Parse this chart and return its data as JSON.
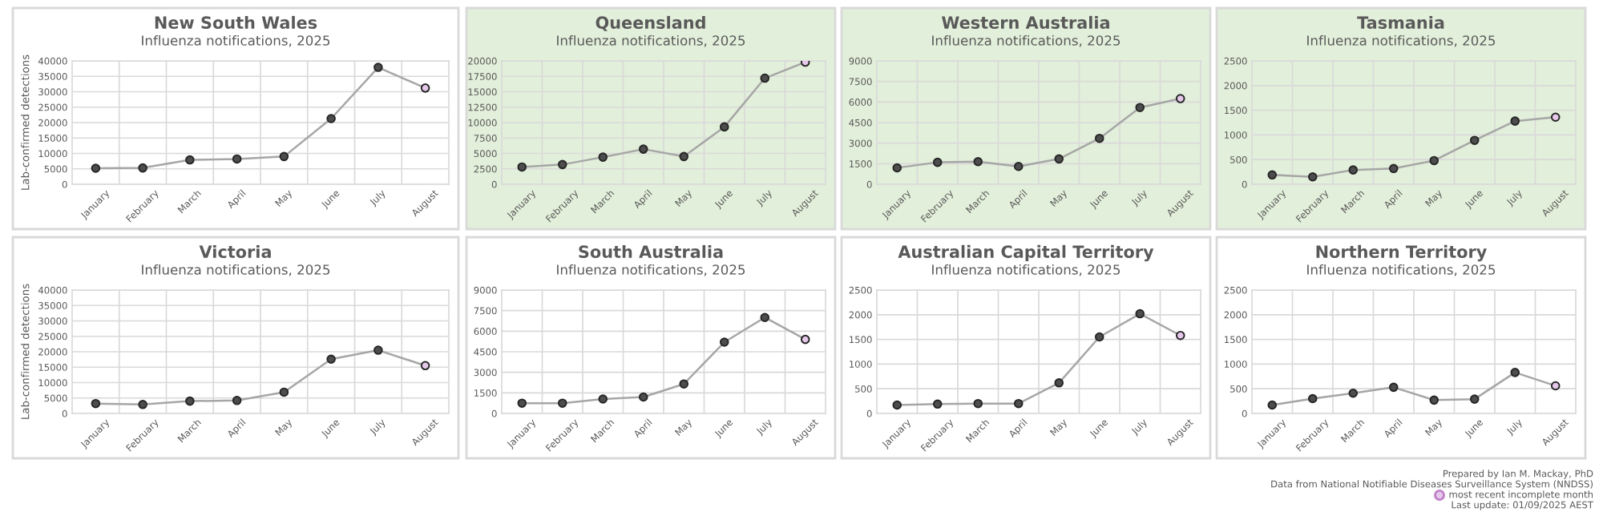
{
  "chart_data": [
    {
      "type": "line",
      "title": "New South Wales",
      "subtitle": "Influenza notifications, 2025",
      "ylabel": "Lab-confirmed detections",
      "categories": [
        "January",
        "February",
        "March",
        "April",
        "May",
        "June",
        "July",
        "August"
      ],
      "series": [
        {
          "color": "#a6a6a6",
          "colors": [
            "#4d4d4d",
            "#4d4d4d",
            "#4d4d4d",
            "#4d4d4d",
            "#4d4d4d",
            "#4d4d4d",
            "#4d4d4d",
            "#e6c8ea"
          ],
          "values": [
            5200,
            5300,
            7900,
            8200,
            9000,
            21300,
            37900,
            31200
          ]
        }
      ],
      "ylim": [
        0,
        40000
      ],
      "yticks": [
        0,
        5000,
        10000,
        15000,
        20000,
        25000,
        30000,
        35000,
        40000
      ],
      "grid": true,
      "marker": "circle",
      "line_style": "solid"
    },
    {
      "type": "line",
      "title": "Queensland",
      "subtitle": "Influenza notifications, 2025",
      "categories": [
        "January",
        "February",
        "March",
        "April",
        "May",
        "June",
        "July",
        "August"
      ],
      "series": [
        {
          "color": "#a6a6a6",
          "colors": [
            "#4d4d4d",
            "#4d4d4d",
            "#4d4d4d",
            "#4d4d4d",
            "#4d4d4d",
            "#4d4d4d",
            "#4d4d4d",
            "#e6c8ea"
          ],
          "values": [
            2800,
            3200,
            4400,
            5700,
            4500,
            9300,
            17200,
            19800
          ]
        }
      ],
      "ylim": [
        0,
        20000
      ],
      "yticks": [
        0,
        2500,
        5000,
        7500,
        10000,
        12500,
        15000,
        17500,
        20000
      ],
      "grid": true,
      "marker": "circle",
      "line_style": "solid"
    },
    {
      "type": "line",
      "title": "Western Australia",
      "subtitle": "Influenza notifications, 2025",
      "categories": [
        "January",
        "February",
        "March",
        "April",
        "May",
        "June",
        "July",
        "August"
      ],
      "series": [
        {
          "color": "#a6a6a6",
          "colors": [
            "#4d4d4d",
            "#4d4d4d",
            "#4d4d4d",
            "#4d4d4d",
            "#4d4d4d",
            "#4d4d4d",
            "#4d4d4d",
            "#e6c8ea"
          ],
          "values": [
            1200,
            1600,
            1650,
            1300,
            1850,
            3350,
            5600,
            6250
          ]
        }
      ],
      "ylim": [
        0,
        9000
      ],
      "yticks": [
        0,
        1500,
        3000,
        4500,
        6000,
        7500,
        9000
      ],
      "grid": true,
      "marker": "circle",
      "line_style": "solid"
    },
    {
      "type": "line",
      "title": "Tasmania",
      "subtitle": "Influenza notifications, 2025",
      "categories": [
        "January",
        "February",
        "March",
        "April",
        "May",
        "June",
        "July",
        "August"
      ],
      "series": [
        {
          "color": "#a6a6a6",
          "colors": [
            "#4d4d4d",
            "#4d4d4d",
            "#4d4d4d",
            "#4d4d4d",
            "#4d4d4d",
            "#4d4d4d",
            "#4d4d4d",
            "#e6c8ea"
          ],
          "values": [
            190,
            150,
            290,
            320,
            480,
            890,
            1280,
            1360
          ]
        }
      ],
      "ylim": [
        0,
        2500
      ],
      "yticks": [
        0,
        500,
        1000,
        1500,
        2000,
        2500
      ],
      "grid": true,
      "marker": "circle",
      "line_style": "solid"
    },
    {
      "type": "line",
      "title": "Victoria",
      "subtitle": "Influenza notifications, 2025",
      "ylabel": "Lab-confirmed detections",
      "categories": [
        "January",
        "February",
        "March",
        "April",
        "May",
        "June",
        "July",
        "August"
      ],
      "series": [
        {
          "color": "#a6a6a6",
          "colors": [
            "#4d4d4d",
            "#4d4d4d",
            "#4d4d4d",
            "#4d4d4d",
            "#4d4d4d",
            "#4d4d4d",
            "#4d4d4d",
            "#e6c8ea"
          ],
          "values": [
            3200,
            2900,
            4000,
            4200,
            6900,
            17600,
            20500,
            15500
          ]
        }
      ],
      "ylim": [
        0,
        40000
      ],
      "yticks": [
        0,
        5000,
        10000,
        15000,
        20000,
        25000,
        30000,
        35000,
        40000
      ],
      "grid": true,
      "marker": "circle",
      "line_style": "solid"
    },
    {
      "type": "line",
      "title": "South Australia",
      "subtitle": "Influenza notifications, 2025",
      "categories": [
        "January",
        "February",
        "March",
        "April",
        "May",
        "June",
        "July",
        "August"
      ],
      "series": [
        {
          "color": "#a6a6a6",
          "colors": [
            "#4d4d4d",
            "#4d4d4d",
            "#4d4d4d",
            "#4d4d4d",
            "#4d4d4d",
            "#4d4d4d",
            "#4d4d4d",
            "#e6c8ea"
          ],
          "values": [
            750,
            750,
            1050,
            1200,
            2150,
            5200,
            7000,
            5400
          ]
        }
      ],
      "ylim": [
        0,
        9000
      ],
      "yticks": [
        0,
        1500,
        3000,
        4500,
        6000,
        7500,
        9000
      ],
      "grid": true,
      "marker": "circle",
      "line_style": "solid"
    },
    {
      "type": "line",
      "title": "Australian Capital Territory",
      "subtitle": "Influenza notifications, 2025",
      "categories": [
        "January",
        "February",
        "March",
        "April",
        "May",
        "June",
        "July",
        "August"
      ],
      "series": [
        {
          "color": "#a6a6a6",
          "colors": [
            "#4d4d4d",
            "#4d4d4d",
            "#4d4d4d",
            "#4d4d4d",
            "#4d4d4d",
            "#4d4d4d",
            "#4d4d4d",
            "#e6c8ea"
          ],
          "values": [
            170,
            190,
            200,
            200,
            620,
            1550,
            2020,
            1580
          ]
        }
      ],
      "ylim": [
        0,
        2500
      ],
      "yticks": [
        0,
        500,
        1000,
        1500,
        2000,
        2500
      ],
      "grid": true,
      "marker": "circle",
      "line_style": "solid"
    },
    {
      "type": "line",
      "title": "Northern Territory",
      "subtitle": "Influenza notifications, 2025",
      "categories": [
        "January",
        "February",
        "March",
        "April",
        "May",
        "June",
        "July",
        "August"
      ],
      "series": [
        {
          "color": "#a6a6a6",
          "colors": [
            "#4d4d4d",
            "#4d4d4d",
            "#4d4d4d",
            "#4d4d4d",
            "#4d4d4d",
            "#4d4d4d",
            "#4d4d4d",
            "#e6c8ea"
          ],
          "values": [
            170,
            300,
            410,
            530,
            270,
            290,
            830,
            560
          ]
        }
      ],
      "ylim": [
        0,
        2500
      ],
      "yticks": [
        0,
        500,
        1000,
        1500,
        2000,
        2500
      ],
      "grid": true,
      "marker": "circle",
      "line_style": "solid",
      "annotations": [
        "Prepared by Ian M. Mackay, PhD",
        "Data from National Notifiable Diseases Surveillance System (NNDSS)",
        "most recent incomplete month",
        "Last update: 01/09/2025 AEST"
      ]
    }
  ]
}
